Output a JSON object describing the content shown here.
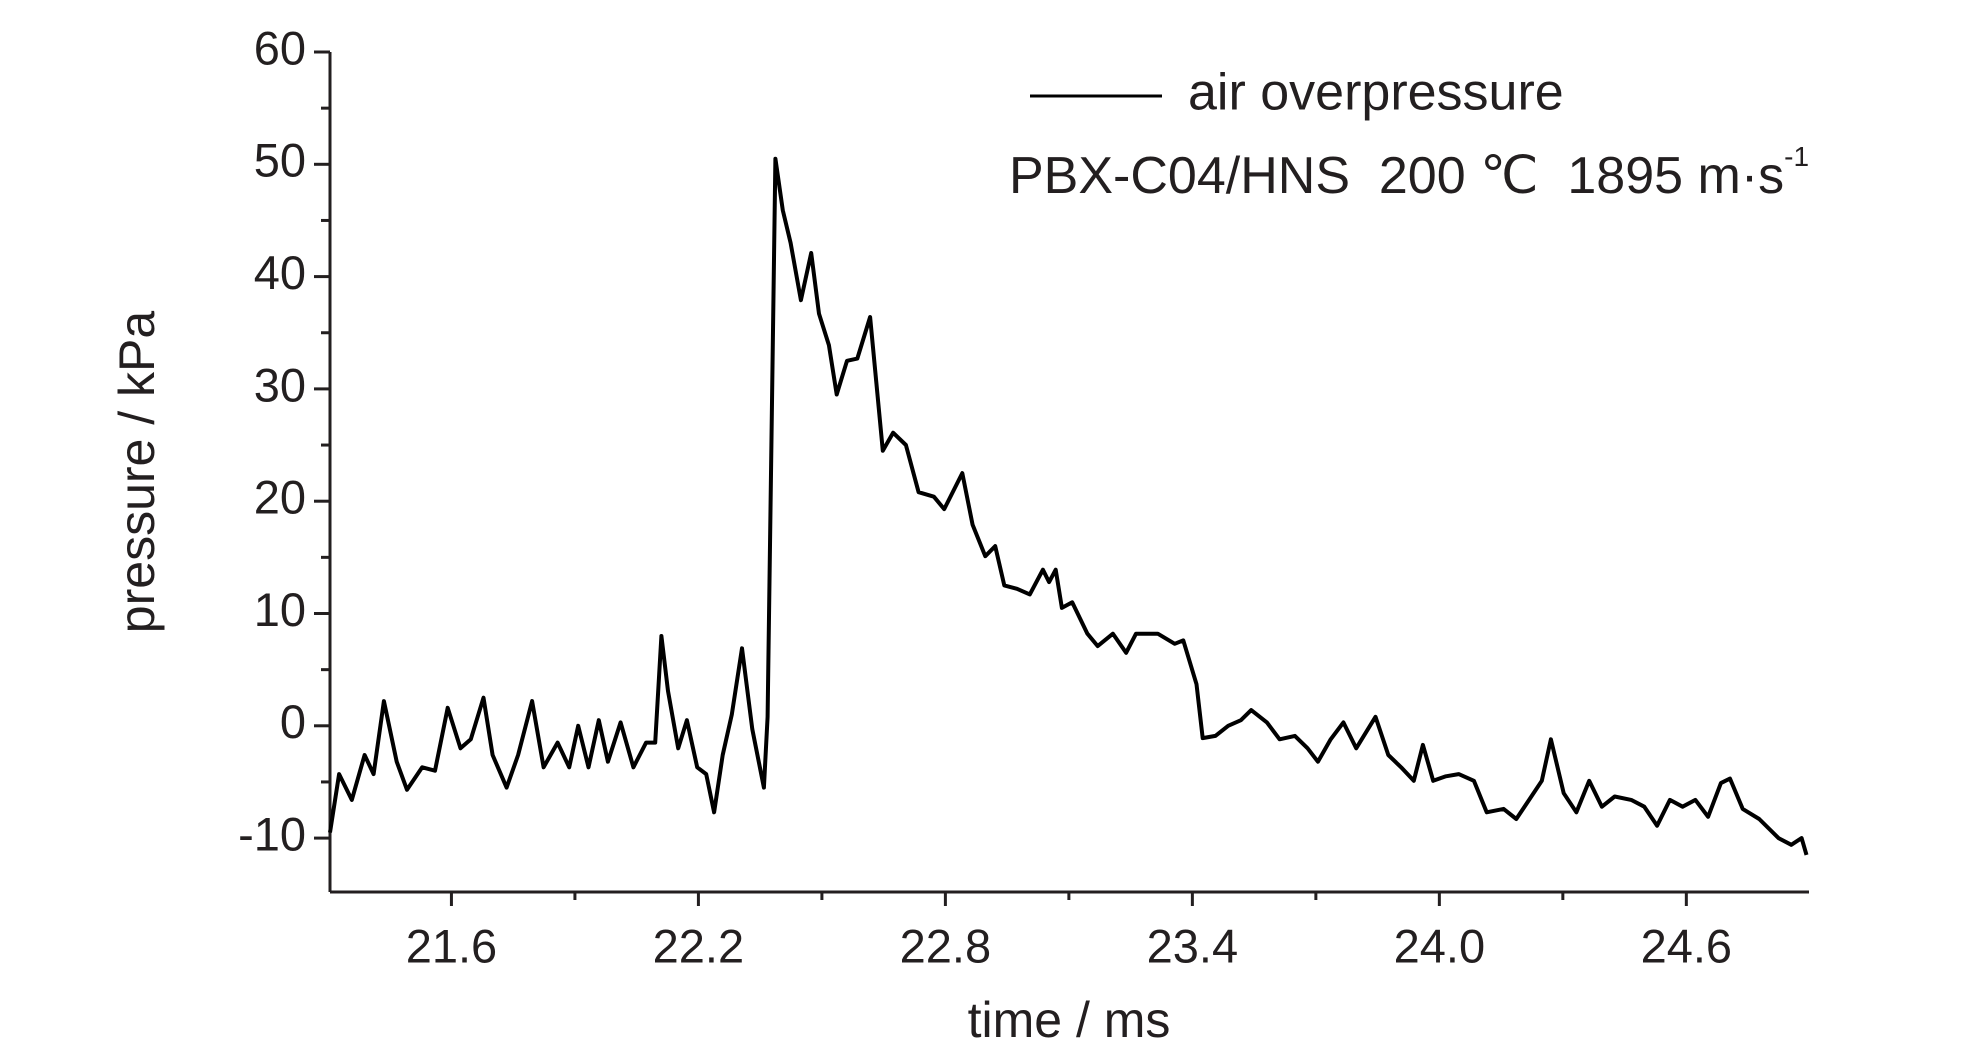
{
  "chart_data": {
    "type": "line",
    "x_label": "time / ms",
    "y_label": "pressure / kPa",
    "annotation": {
      "text": "PBX-C04/HNS  200 ℃  1895 m·s",
      "superscript": "-1"
    },
    "legend": "top-right",
    "xlim": [
      21.305,
      24.898
    ],
    "ylim": [
      -14.8,
      60
    ],
    "xticks": [
      21.6,
      22.2,
      22.8,
      23.4,
      {
        "value": 24,
        "label": "24.0"
      },
      24.6
    ],
    "yticks": [
      -10,
      0,
      10,
      20,
      30,
      40,
      50,
      60
    ],
    "series": [
      {
        "name": "air overpressure",
        "color": "#000000",
        "x": [
          21.305,
          21.327,
          21.358,
          21.389,
          21.411,
          21.436,
          21.467,
          21.492,
          21.529,
          21.56,
          21.591,
          21.622,
          21.647,
          21.678,
          21.7,
          21.734,
          21.762,
          21.796,
          21.824,
          21.858,
          21.886,
          21.908,
          21.933,
          21.958,
          21.98,
          22.011,
          22.042,
          22.073,
          22.095,
          22.11,
          22.126,
          22.151,
          22.172,
          22.197,
          22.219,
          22.238,
          22.259,
          22.281,
          22.306,
          22.331,
          22.359,
          22.368,
          22.387,
          22.405,
          22.424,
          22.449,
          22.474,
          22.493,
          22.517,
          22.536,
          22.561,
          22.586,
          22.617,
          22.648,
          22.673,
          22.704,
          22.735,
          22.772,
          22.797,
          22.841,
          22.866,
          22.897,
          22.921,
          22.943,
          22.974,
          23.005,
          23.037,
          23.052,
          23.068,
          23.083,
          23.108,
          23.145,
          23.17,
          23.207,
          23.239,
          23.263,
          23.285,
          23.316,
          23.357,
          23.378,
          23.41,
          23.425,
          23.456,
          23.487,
          23.518,
          23.543,
          23.581,
          23.612,
          23.649,
          23.68,
          23.705,
          23.736,
          23.767,
          23.798,
          23.845,
          23.876,
          23.907,
          23.938,
          23.96,
          23.985,
          24.016,
          24.047,
          24.084,
          24.115,
          24.156,
          24.187,
          24.218,
          24.249,
          24.271,
          24.302,
          24.333,
          24.364,
          24.395,
          24.426,
          24.466,
          24.498,
          24.529,
          24.56,
          24.591,
          24.622,
          24.653,
          24.684,
          24.706,
          24.737,
          24.777,
          24.824,
          24.855,
          24.88,
          24.892
        ],
        "values": [
          -9.5,
          -4.3,
          -6.6,
          -2.6,
          -4.3,
          2.2,
          -3.2,
          -5.7,
          -3.7,
          -4,
          1.6,
          -2,
          -1.2,
          2.5,
          -2.6,
          -5.5,
          -2.6,
          2.2,
          -3.7,
          -1.5,
          -3.7,
          0,
          -3.7,
          0.5,
          -3.2,
          0.3,
          -3.7,
          -1.5,
          -1.5,
          8,
          3.1,
          -2,
          0.5,
          -3.7,
          -4.3,
          -7.7,
          -2.6,
          1,
          6.9,
          -0.3,
          -5.5,
          0.8,
          50.5,
          45.9,
          43,
          37.9,
          42.1,
          36.7,
          33.9,
          29.5,
          32.5,
          32.7,
          36.4,
          24.5,
          26.1,
          25,
          20.8,
          20.4,
          19.3,
          22.5,
          17.9,
          15.1,
          16,
          12.5,
          12.2,
          11.7,
          13.9,
          12.8,
          13.9,
          10.5,
          11,
          8.2,
          7.1,
          8.2,
          6.5,
          8.2,
          8.2,
          8.2,
          7.3,
          7.6,
          3.7,
          -1.1,
          -0.9,
          0,
          0.5,
          1.4,
          0.3,
          -1.2,
          -0.9,
          -2,
          -3.2,
          -1.2,
          0.3,
          -2,
          0.8,
          -2.6,
          -3.7,
          -4.9,
          -1.7,
          -4.9,
          -4.5,
          -4.3,
          -4.9,
          -7.7,
          -7.4,
          -8.3,
          -6.6,
          -4.9,
          -1.2,
          -6,
          -7.7,
          -4.9,
          -7.2,
          -6.3,
          -6.6,
          -7.2,
          -8.9,
          -6.6,
          -7.2,
          -6.6,
          -8.1,
          -5.1,
          -4.7,
          -7.4,
          -8.3,
          -10,
          -10.6,
          -10,
          -11.5
        ]
      }
    ]
  }
}
